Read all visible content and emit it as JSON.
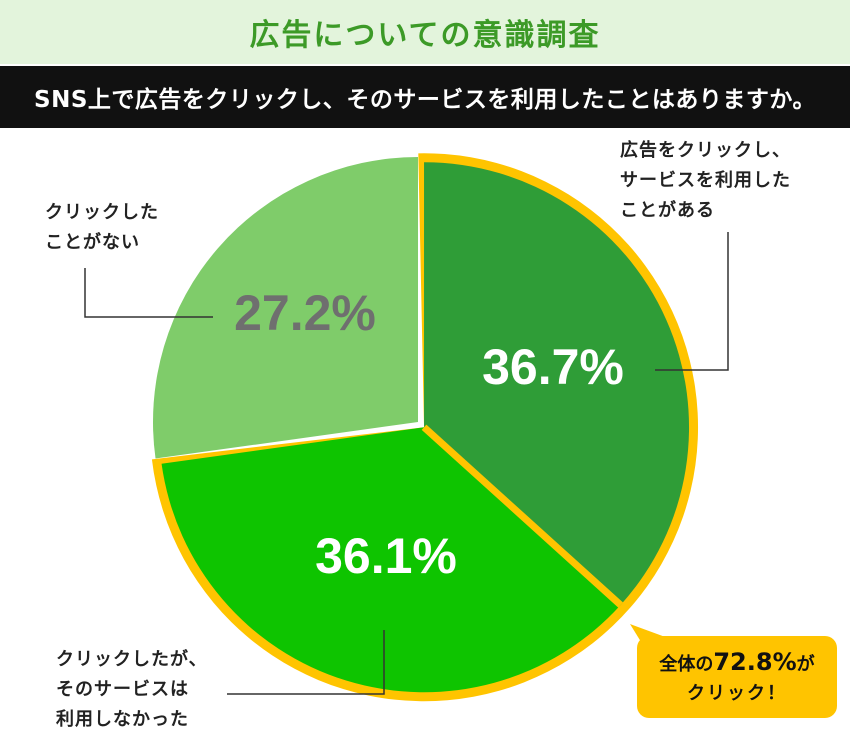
{
  "header": {
    "title": "広告についての意識調査"
  },
  "question": {
    "text": "SNS上で広告をクリックし、そのサービスを利用したことはありますか。"
  },
  "colors": {
    "header_bg": "#e3f4dc",
    "header_text": "#3c9a27",
    "question_bg": "#111111",
    "ring": "#ffc400",
    "clicked_used": "#2f9d37",
    "clicked_not_used": "#0ec400",
    "not_clicked": "#7fcc6a",
    "not_clicked_text": "#6f6f6f",
    "badge_bg": "#ffc400"
  },
  "chart_data": {
    "type": "pie",
    "title": "SNS上で広告をクリックし、そのサービスを利用したことはありますか。",
    "unit": "%",
    "slices": [
      {
        "key": "clicked_used",
        "label_lines": [
          "広告をクリックし、",
          "サービスを利用した",
          "ことがある"
        ],
        "value": 36.7,
        "display": "36.7%"
      },
      {
        "key": "clicked_not_used",
        "label_lines": [
          "クリックしたが、",
          "そのサービスは",
          "利用しなかった"
        ],
        "value": 36.1,
        "display": "36.1%"
      },
      {
        "key": "not_clicked",
        "label_lines": [
          "クリックした",
          "ことがない"
        ],
        "value": 27.2,
        "display": "27.2%"
      }
    ],
    "highlighted_slices": [
      "clicked_used",
      "clicked_not_used"
    ],
    "annotation": {
      "prefix": "全体の",
      "value": "72.8%",
      "suffix": "が",
      "line2": "クリック！"
    }
  }
}
